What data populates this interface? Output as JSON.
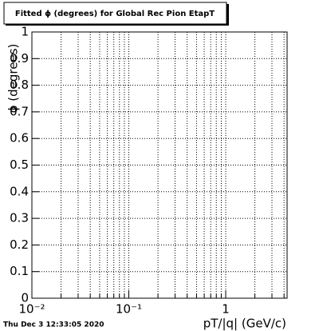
{
  "chart_data": {
    "type": "scatter",
    "title": "Fitted ϕ (degrees) for Global Rec Pion EtapT",
    "x_label": "pT/|q| (GeV/c)",
    "y_label": "ϕ (degrees)",
    "footer": "Thu Dec  3 12:33:05 2020",
    "x": [],
    "values": [],
    "xscale": "log",
    "xlim": [
      0.01,
      4.3
    ],
    "ylim": [
      0,
      1
    ],
    "xticks": [
      {
        "value": 0.01,
        "label": "10⁻²"
      },
      {
        "value": 0.1,
        "label": "10⁻¹"
      },
      1
    ],
    "xminorticks": [
      0.02,
      0.03,
      0.04,
      0.05,
      0.06,
      0.07,
      0.08,
      0.09,
      0.2,
      0.3,
      0.4,
      0.5,
      0.6,
      0.7,
      0.8,
      0.9,
      2,
      3,
      4
    ],
    "yticks": [
      0,
      0.1,
      0.2,
      0.3,
      0.4,
      0.5,
      0.6,
      0.7,
      0.8,
      0.9,
      1
    ],
    "grid": true
  }
}
